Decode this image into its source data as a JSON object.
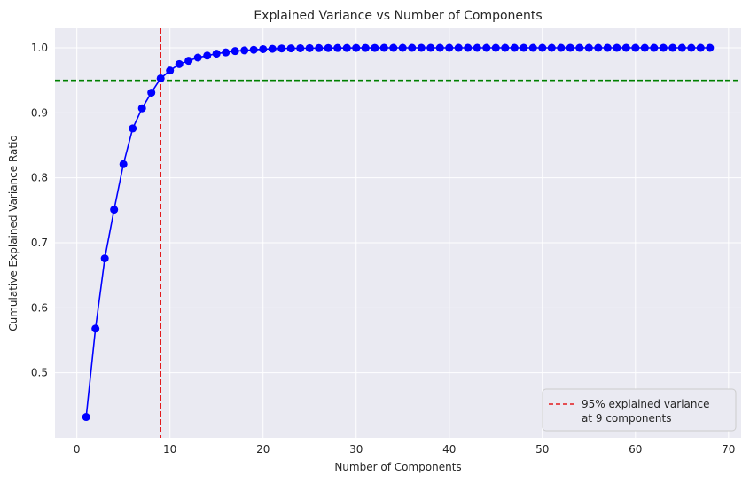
{
  "chart_data": {
    "type": "line",
    "title": "Explained Variance vs Number of Components",
    "xlabel": "Number of Components",
    "ylabel": "Cumulative Explained Variance Ratio",
    "xlim": [
      -2.35,
      71.35
    ],
    "ylim": [
      0.4,
      1.03
    ],
    "xticks": [
      0,
      10,
      20,
      30,
      40,
      50,
      60,
      70
    ],
    "yticks": [
      0.5,
      0.6,
      0.7,
      0.8,
      0.9,
      1.0
    ],
    "xtick_labels": [
      "0",
      "10",
      "20",
      "30",
      "40",
      "50",
      "60",
      "70"
    ],
    "ytick_labels": [
      "0.5",
      "0.6",
      "0.7",
      "0.8",
      "0.9",
      "1.0"
    ],
    "grid": true,
    "series": [
      {
        "color": "#0000ff",
        "marker": "circle",
        "x": [
          1,
          2,
          3,
          4,
          5,
          6,
          7,
          8,
          9,
          10,
          11,
          12,
          13,
          14,
          15,
          16,
          17,
          18,
          19,
          20,
          21,
          22,
          23,
          24,
          25,
          26,
          27,
          28,
          29,
          30,
          31,
          32,
          33,
          34,
          35,
          36,
          37,
          38,
          39,
          40,
          41,
          42,
          43,
          44,
          45,
          46,
          47,
          48,
          49,
          50,
          51,
          52,
          53,
          54,
          55,
          56,
          57,
          58,
          59,
          60,
          61,
          62,
          63,
          64,
          65,
          66,
          67,
          68
        ],
        "y": [
          0.432,
          0.568,
          0.676,
          0.751,
          0.821,
          0.876,
          0.907,
          0.931,
          0.953,
          0.965,
          0.975,
          0.98,
          0.985,
          0.988,
          0.991,
          0.993,
          0.995,
          0.996,
          0.997,
          0.998,
          0.9985,
          0.999,
          0.9992,
          0.9994,
          0.9995,
          0.9996,
          0.9997,
          0.9998,
          0.9998,
          0.9999,
          0.9999,
          0.9999,
          1.0,
          1.0,
          1.0,
          1.0,
          1.0,
          1.0,
          1.0,
          1.0,
          1.0,
          1.0,
          1.0,
          1.0,
          1.0,
          1.0,
          1.0,
          1.0,
          1.0,
          1.0,
          1.0,
          1.0,
          1.0,
          1.0,
          1.0,
          1.0,
          1.0,
          1.0,
          1.0,
          1.0,
          1.0,
          1.0,
          1.0,
          1.0,
          1.0,
          1.0,
          1.0,
          1.0
        ]
      }
    ],
    "reference_lines": [
      {
        "orientation": "horizontal",
        "value": 0.95,
        "color": "#008000",
        "style": "dashed"
      },
      {
        "orientation": "vertical",
        "value": 9,
        "color": "#e31a1c",
        "style": "dashed"
      }
    ],
    "legend": {
      "position": "lower-right",
      "entries": [
        {
          "label_line1": "95% explained variance",
          "label_line2": "at 9 components",
          "color": "#e31a1c",
          "style": "dashed"
        }
      ]
    },
    "colors": {
      "plot_background": "#eaeaf2",
      "grid": "#ffffff",
      "text": "#262626"
    }
  }
}
